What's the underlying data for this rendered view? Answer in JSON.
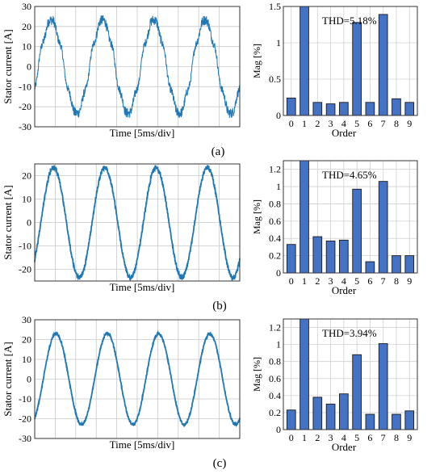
{
  "panels": [
    {
      "label": "(a)",
      "wave": {
        "ylabel": "Stator current [A]",
        "xlabel": "Time [5ms/div]",
        "ylim": [
          -30,
          30
        ],
        "yticks": [
          30,
          20,
          10,
          0,
          -10,
          -20,
          -30
        ],
        "amplitude": 23,
        "noise": 2.6
      },
      "bars": {
        "ylabel": "Mag [%]",
        "xlabel": "Order",
        "annotation": "THD=5.18%",
        "ylim": [
          0,
          1.5
        ],
        "yticks": [
          "1.5",
          "1",
          "0.5",
          "0"
        ]
      }
    },
    {
      "label": "(b)",
      "wave": {
        "ylabel": "Stator current [A]",
        "xlabel": "Time [5ms/div]",
        "ylim": [
          -25,
          25
        ],
        "yticks": [
          20,
          10,
          0,
          -10,
          -20
        ],
        "amplitude": 23.5,
        "noise": 1.0
      },
      "bars": {
        "ylabel": "Mag [%]",
        "xlabel": "Order",
        "annotation": "THD=4.65%",
        "ylim": [
          0,
          1.3
        ],
        "yticks": [
          "1.2",
          "1",
          "0.8",
          "0.6",
          "0.4",
          "0.2",
          "0"
        ]
      }
    },
    {
      "label": "(c)",
      "wave": {
        "ylabel": "Stator current [A]",
        "xlabel": "Time [5ms/div]",
        "ylim": [
          -30,
          30
        ],
        "yticks": [
          30,
          20,
          10,
          0,
          -10,
          -20,
          -30
        ],
        "amplitude": 23,
        "noise": 0.7
      },
      "bars": {
        "ylabel": "Mag [%]",
        "xlabel": "Order",
        "annotation": "THD=3.94%",
        "ylim": [
          0,
          1.3
        ],
        "yticks": [
          "1.2",
          "1",
          "0.8",
          "0.6",
          "0.4",
          "0.2",
          "0"
        ]
      }
    }
  ],
  "chart_data": [
    {
      "type": "line",
      "xlabel": "Time [5ms/div]",
      "ylabel": "Stator current [A]",
      "ylim": [
        -30,
        30
      ],
      "grid": true,
      "series": [
        {
          "x_divisions": [
            0,
            10
          ],
          "cycles": 4,
          "amplitude": 23
        }
      ]
    },
    {
      "type": "bar",
      "xlabel": "Order",
      "ylabel": "Mag [%]",
      "ylim": [
        0,
        1.5
      ],
      "grid": true,
      "categories": [
        "0",
        "1",
        "2",
        "3",
        "4",
        "5",
        "6",
        "7",
        "8",
        "9"
      ],
      "values": [
        0.24,
        1.52,
        0.18,
        0.16,
        0.18,
        1.28,
        0.18,
        1.39,
        0.23,
        0.18
      ]
    },
    {
      "type": "line",
      "xlabel": "Time [5ms/div]",
      "ylabel": "Stator current [A]",
      "ylim": [
        -25,
        25
      ],
      "grid": true,
      "series": [
        {
          "x_divisions": [
            0,
            10
          ],
          "cycles": 4,
          "amplitude": 23.5
        }
      ]
    },
    {
      "type": "bar",
      "xlabel": "Order",
      "ylabel": "Mag [%]",
      "ylim": [
        0,
        1.3
      ],
      "grid": true,
      "categories": [
        "0",
        "1",
        "2",
        "3",
        "4",
        "5",
        "6",
        "7",
        "8",
        "9"
      ],
      "values": [
        0.33,
        1.3,
        0.42,
        0.37,
        0.38,
        0.97,
        0.13,
        1.06,
        0.2,
        0.2
      ]
    },
    {
      "type": "line",
      "xlabel": "Time [5ms/div]",
      "ylabel": "Stator current [A]",
      "ylim": [
        -30,
        30
      ],
      "grid": true,
      "series": [
        {
          "x_divisions": [
            0,
            10
          ],
          "cycles": 4,
          "amplitude": 23
        }
      ]
    },
    {
      "type": "bar",
      "xlabel": "Order",
      "ylabel": "Mag [%]",
      "ylim": [
        0,
        1.3
      ],
      "grid": true,
      "categories": [
        "0",
        "1",
        "2",
        "3",
        "4",
        "5",
        "6",
        "7",
        "8",
        "9"
      ],
      "values": [
        0.23,
        1.3,
        0.38,
        0.3,
        0.42,
        0.88,
        0.18,
        1.01,
        0.18,
        0.22
      ]
    }
  ]
}
